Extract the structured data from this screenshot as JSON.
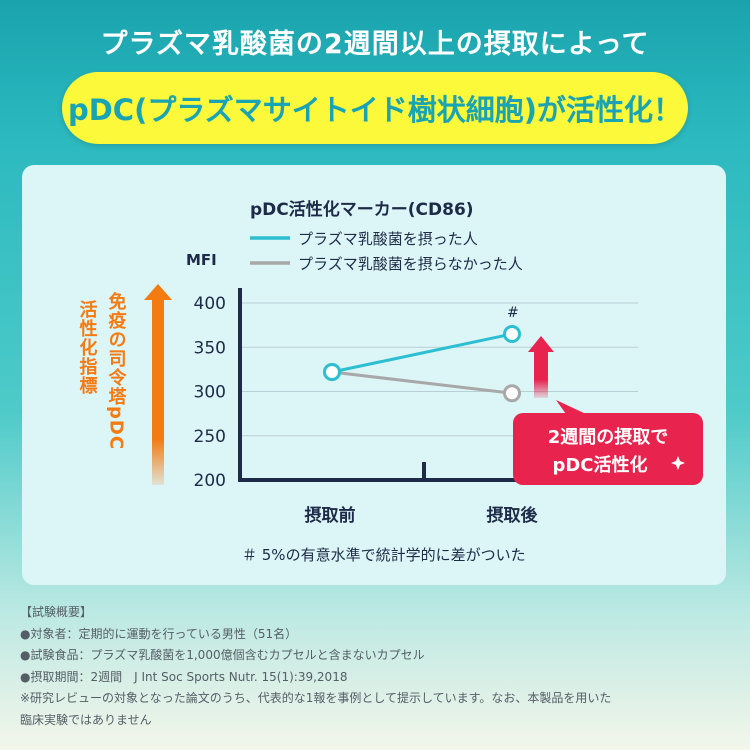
{
  "headline": "プラズマ乳酸菌の2週間以上の摂取によって",
  "banner": "pDC(プラズマサイトイド樹状細胞)が活性化！",
  "chart_data": {
    "type": "line",
    "title": "pDC活性化マーカー(CD86)",
    "ylabel": "MFI",
    "categories": [
      "摂取前",
      "摂取後"
    ],
    "ylim": [
      200,
      400
    ],
    "yticks": [
      200,
      250,
      300,
      350,
      400
    ],
    "grid": true,
    "legend_position": "top",
    "series": [
      {
        "name": "プラズマ乳酸菌を摂った人",
        "values": [
          322,
          365
        ],
        "color": "#2bbfd1"
      },
      {
        "name": "プラズマ乳酸菌を摂らなかった人",
        "values": [
          322,
          298
        ],
        "color": "#a8a8a8"
      }
    ],
    "significance_marker": "#",
    "significance_note": "＃ 5%の有意水準で統計学的に差がついた",
    "side_label_1": "活性化指標",
    "side_label_2": "免疫の司令塔pDC",
    "callout_line1": "2週間の摂取で",
    "callout_line2": "pDC活性化"
  },
  "colors": {
    "accent_cyan": "#2bbfd1",
    "grey_line": "#a8a8a8",
    "arrow_orange": "#f47a12",
    "callout_red": "#e8234e",
    "axis_navy": "#1d2b48"
  },
  "notes": [
    "【試験概要】",
    "●対象者：定期的に運動を行っている男性（51名）",
    "●試験食品：プラズマ乳酸菌を1,000億個含むカプセルと含まないカプセル",
    "●摂取期間：2週間　J Int Soc Sports Nutr. 15(1):39,2018",
    "※研究レビューの対象となった論文のうち、代表的な1報を事例として提示しています。なお、本製品を用いた",
    "臨床実験ではありません"
  ]
}
